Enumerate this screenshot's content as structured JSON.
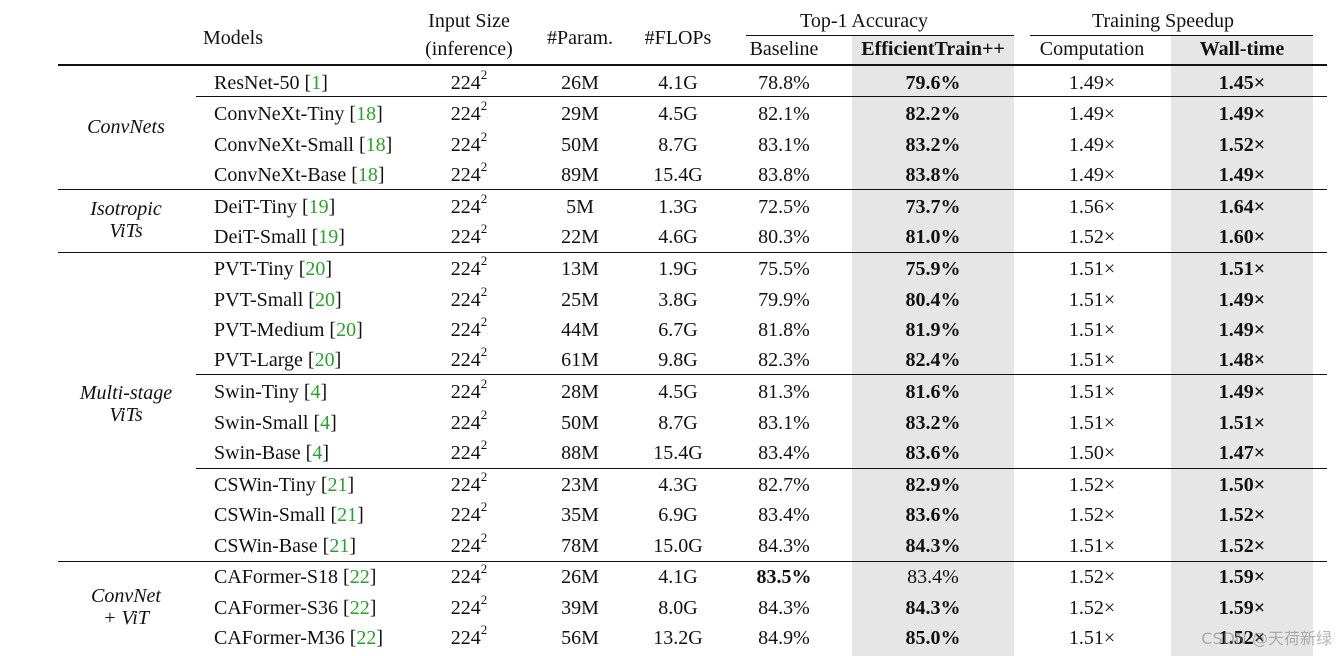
{
  "header": {
    "models": "Models",
    "input_size": "Input Size",
    "input_size_sub": "(inference)",
    "params": "#Param.",
    "flops": "#FLOPs",
    "top1": "Top-1 Accuracy",
    "baseline": "Baseline",
    "efficienttrain": "EfficientTrain++",
    "speedup": "Training Speedup",
    "computation": "Computation",
    "walltime": "Wall-time"
  },
  "groups": [
    {
      "name": "ConvNets"
    },
    {
      "name": "Isotropic",
      "name2": "ViTs"
    },
    {
      "name": "Multi-stage",
      "name2": "ViTs"
    },
    {
      "name": "ConvNet",
      "name2": "+ ViT"
    }
  ],
  "size_base": "224",
  "size_exp": "2",
  "rows": [
    {
      "model": "ResNet-50",
      "ref": "1",
      "params": "26M",
      "flops": "4.1G",
      "baseline": "78.8%",
      "eff": "79.6%",
      "comp": "1.49×",
      "wall": "1.45×",
      "bold_base": false
    },
    {
      "model": "ConvNeXt-Tiny",
      "ref": "18",
      "params": "29M",
      "flops": "4.5G",
      "baseline": "82.1%",
      "eff": "82.2%",
      "comp": "1.49×",
      "wall": "1.49×",
      "bold_base": false
    },
    {
      "model": "ConvNeXt-Small",
      "ref": "18",
      "params": "50M",
      "flops": "8.7G",
      "baseline": "83.1%",
      "eff": "83.2%",
      "comp": "1.49×",
      "wall": "1.52×",
      "bold_base": false
    },
    {
      "model": "ConvNeXt-Base",
      "ref": "18",
      "params": "89M",
      "flops": "15.4G",
      "baseline": "83.8%",
      "eff": "83.8%",
      "comp": "1.49×",
      "wall": "1.49×",
      "bold_base": false
    },
    {
      "model": "DeiT-Tiny",
      "ref": "19",
      "params": "5M",
      "flops": "1.3G",
      "baseline": "72.5%",
      "eff": "73.7%",
      "comp": "1.56×",
      "wall": "1.64×",
      "bold_base": false
    },
    {
      "model": "DeiT-Small",
      "ref": "19",
      "params": "22M",
      "flops": "4.6G",
      "baseline": "80.3%",
      "eff": "81.0%",
      "comp": "1.52×",
      "wall": "1.60×",
      "bold_base": false
    },
    {
      "model": "PVT-Tiny",
      "ref": "20",
      "params": "13M",
      "flops": "1.9G",
      "baseline": "75.5%",
      "eff": "75.9%",
      "comp": "1.51×",
      "wall": "1.51×",
      "bold_base": false
    },
    {
      "model": "PVT-Small",
      "ref": "20",
      "params": "25M",
      "flops": "3.8G",
      "baseline": "79.9%",
      "eff": "80.4%",
      "comp": "1.51×",
      "wall": "1.49×",
      "bold_base": false
    },
    {
      "model": "PVT-Medium",
      "ref": "20",
      "params": "44M",
      "flops": "6.7G",
      "baseline": "81.8%",
      "eff": "81.9%",
      "comp": "1.51×",
      "wall": "1.49×",
      "bold_base": false
    },
    {
      "model": "PVT-Large",
      "ref": "20",
      "params": "61M",
      "flops": "9.8G",
      "baseline": "82.3%",
      "eff": "82.4%",
      "comp": "1.51×",
      "wall": "1.48×",
      "bold_base": false
    },
    {
      "model": "Swin-Tiny",
      "ref": "4",
      "params": "28M",
      "flops": "4.5G",
      "baseline": "81.3%",
      "eff": "81.6%",
      "comp": "1.51×",
      "wall": "1.49×",
      "bold_base": false
    },
    {
      "model": "Swin-Small",
      "ref": "4",
      "params": "50M",
      "flops": "8.7G",
      "baseline": "83.1%",
      "eff": "83.2%",
      "comp": "1.51×",
      "wall": "1.51×",
      "bold_base": false
    },
    {
      "model": "Swin-Base",
      "ref": "4",
      "params": "88M",
      "flops": "15.4G",
      "baseline": "83.4%",
      "eff": "83.6%",
      "comp": "1.50×",
      "wall": "1.47×",
      "bold_base": false
    },
    {
      "model": "CSWin-Tiny",
      "ref": "21",
      "params": "23M",
      "flops": "4.3G",
      "baseline": "82.7%",
      "eff": "82.9%",
      "comp": "1.52×",
      "wall": "1.50×",
      "bold_base": false
    },
    {
      "model": "CSWin-Small",
      "ref": "21",
      "params": "35M",
      "flops": "6.9G",
      "baseline": "83.4%",
      "eff": "83.6%",
      "comp": "1.52×",
      "wall": "1.52×",
      "bold_base": false
    },
    {
      "model": "CSWin-Base",
      "ref": "21",
      "params": "78M",
      "flops": "15.0G",
      "baseline": "84.3%",
      "eff": "84.3%",
      "comp": "1.51×",
      "wall": "1.52×",
      "bold_base": false
    },
    {
      "model": "CAFormer-S18",
      "ref": "22",
      "params": "26M",
      "flops": "4.1G",
      "baseline": "83.5%",
      "eff": "83.4%",
      "comp": "1.52×",
      "wall": "1.59×",
      "bold_base": true
    },
    {
      "model": "CAFormer-S36",
      "ref": "22",
      "params": "39M",
      "flops": "8.0G",
      "baseline": "84.3%",
      "eff": "84.3%",
      "comp": "1.52×",
      "wall": "1.59×",
      "bold_base": false
    },
    {
      "model": "CAFormer-M36",
      "ref": "22",
      "params": "56M",
      "flops": "13.2G",
      "baseline": "84.9%",
      "eff": "85.0%",
      "comp": "1.51×",
      "wall": "1.52×",
      "bold_base": false
    }
  ],
  "watermark": "CSDN @天荷新绿"
}
